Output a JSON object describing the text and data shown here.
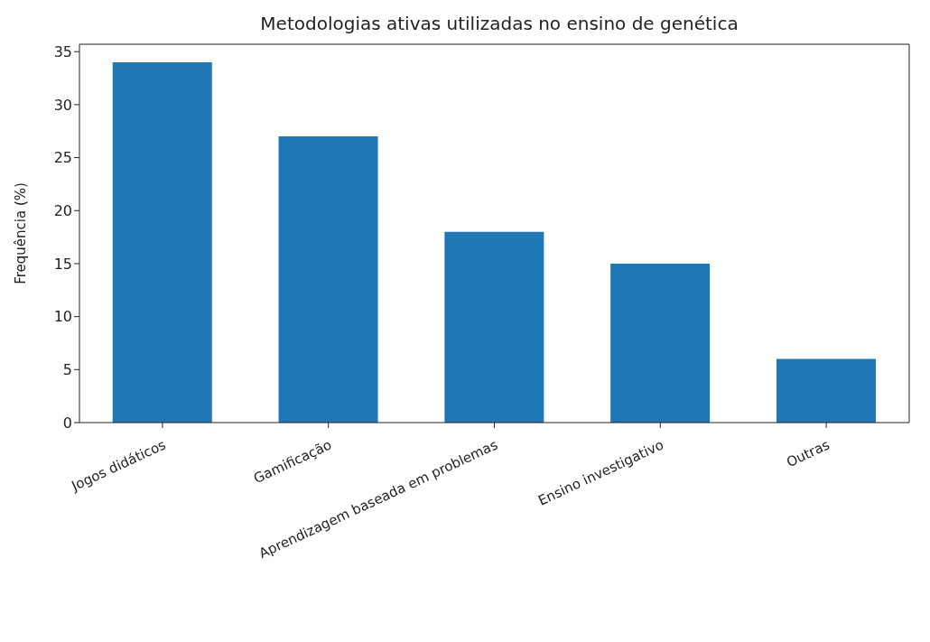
{
  "chart_data": {
    "type": "bar",
    "title": "Metodologias ativas utilizadas no ensino de genética",
    "ylabel": "Frequência (%)",
    "categories": [
      "Jogos didáticos",
      "Gamificação",
      "Aprendizagem baseada em problemas",
      "Ensino investigativo",
      "Outras"
    ],
    "values": [
      34,
      27,
      18,
      15,
      6
    ],
    "color": "#1f77b4",
    "ylim": [
      0,
      35.7
    ],
    "yticks": [
      0,
      5,
      10,
      15,
      20,
      25,
      30,
      35
    ],
    "grid": false
  }
}
